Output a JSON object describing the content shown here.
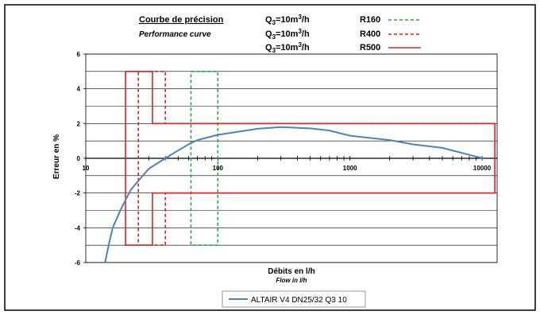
{
  "header": {
    "title_fr": "Courbe de précision",
    "title_en": "Performance curve",
    "q3_label": "Q3=10m3/h"
  },
  "legend_top": [
    {
      "q3": "Q3=10m3/h",
      "class": "R160",
      "color": "#22aa44",
      "dash": true
    },
    {
      "q3": "Q3=10m3/h",
      "class": "R400",
      "color": "#dd2222",
      "dash": true
    },
    {
      "q3": "Q3=10m3/h",
      "class": "R500",
      "color": "#dd2222",
      "dash": false
    }
  ],
  "axes": {
    "ylabel": "Erreur en %",
    "xlabel": "Débits en l/h",
    "xlabel_en": "Flow in l/h"
  },
  "chart_data": {
    "type": "line",
    "x_scale": "log",
    "xlim": [
      10,
      13000
    ],
    "ylim": [
      -6,
      6
    ],
    "x_ticks": [
      10,
      100,
      1000,
      10000
    ],
    "x_tick_labels": [
      "10",
      "100",
      "1000",
      "10000"
    ],
    "y_ticks": [
      -6,
      -4,
      -2,
      0,
      2,
      4,
      6
    ],
    "y_tick_labels": [
      "-6",
      "-4",
      "-2",
      "0",
      "2",
      "4",
      "6"
    ],
    "grid": true,
    "series": [
      {
        "name": "ALTAIR V4 DN25/32 Q3 10",
        "color": "#4f81bd",
        "points": [
          [
            14,
            -6.0
          ],
          [
            15,
            -4.9
          ],
          [
            16,
            -4.0
          ],
          [
            18,
            -3.1
          ],
          [
            20,
            -2.4
          ],
          [
            22,
            -1.8
          ],
          [
            25,
            -1.3
          ],
          [
            30,
            -0.6
          ],
          [
            40,
            0.0
          ],
          [
            50,
            0.45
          ],
          [
            60,
            0.8
          ],
          [
            70,
            1.05
          ],
          [
            100,
            1.35
          ],
          [
            200,
            1.7
          ],
          [
            300,
            1.8
          ],
          [
            500,
            1.72
          ],
          [
            700,
            1.6
          ],
          [
            1000,
            1.3
          ],
          [
            2000,
            1.05
          ],
          [
            3000,
            0.8
          ],
          [
            5000,
            0.6
          ],
          [
            9000,
            0.1
          ],
          [
            10200,
            0.0
          ]
        ]
      }
    ],
    "envelopes": [
      {
        "class": "R160",
        "color": "#22aa44",
        "dash": true,
        "outline": [
          [
            62.5,
            5
          ],
          [
            100,
            5
          ],
          [
            100,
            -5
          ],
          [
            62.5,
            -5
          ],
          [
            62.5,
            5
          ]
        ]
      },
      {
        "class": "R400",
        "color": "#dd2222",
        "dash": true,
        "outline": [
          [
            25,
            5
          ],
          [
            40,
            5
          ],
          [
            40,
            2
          ],
          [
            12500,
            2
          ],
          [
            12500,
            -2
          ],
          [
            40,
            -2
          ],
          [
            40,
            -5
          ],
          [
            25,
            -5
          ],
          [
            25,
            5
          ]
        ]
      },
      {
        "class": "R500",
        "color": "#dd2222",
        "dash": false,
        "outline": [
          [
            20,
            5
          ],
          [
            32,
            5
          ],
          [
            32,
            2
          ],
          [
            12500,
            2
          ],
          [
            12500,
            -2
          ],
          [
            32,
            -2
          ],
          [
            32,
            -5
          ],
          [
            20,
            -5
          ],
          [
            20,
            5
          ]
        ]
      }
    ],
    "legend_bottom": "ALTAIR V4 DN25/32 Q3 10"
  }
}
